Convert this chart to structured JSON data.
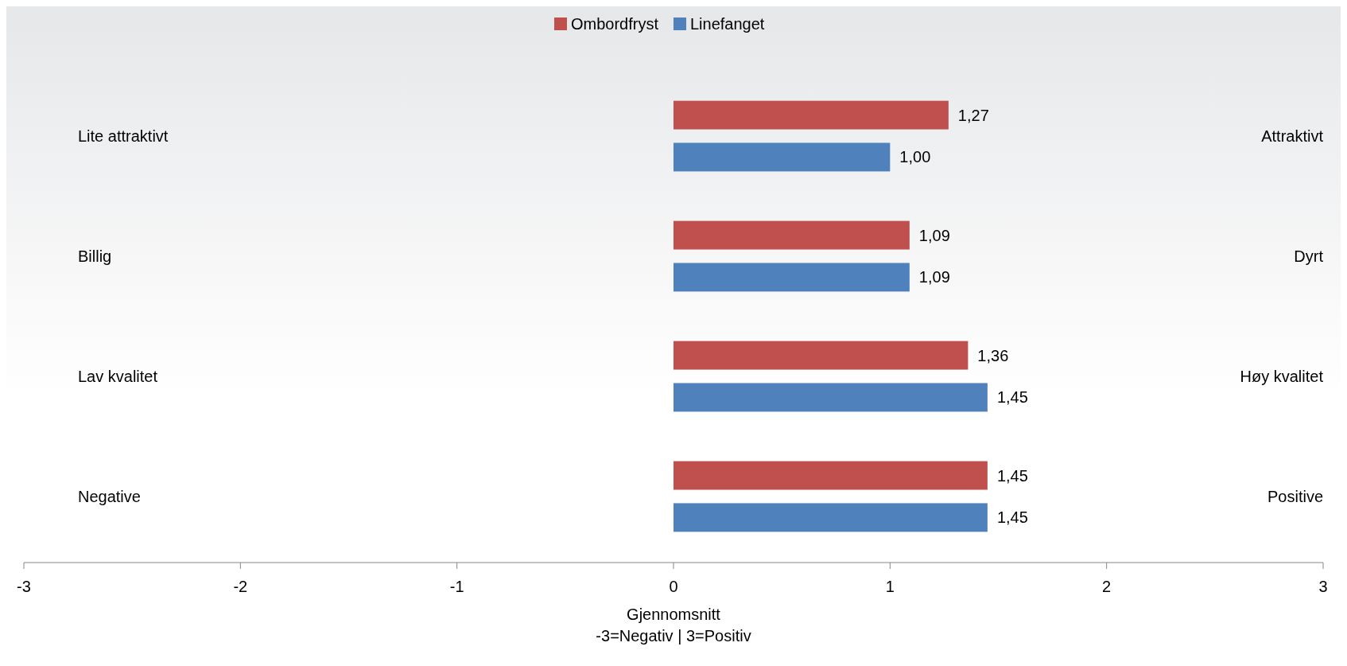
{
  "chart_data": {
    "type": "bar",
    "orientation": "horizontal",
    "categories": [
      "Lite attraktivt",
      "Billig",
      "Lav kvalitet",
      "Negative"
    ],
    "y2_categories": [
      "Attraktivt",
      "Dyrt",
      "Høy kvalitet",
      "Positive"
    ],
    "series": [
      {
        "name": "Ombordfryst",
        "color": "#c0504d",
        "values": [
          1.27,
          1.09,
          1.36,
          1.45
        ],
        "value_labels": [
          "1,27",
          "1,09",
          "1,36",
          "1,45"
        ]
      },
      {
        "name": "Linefanget",
        "color": "#4f81bd",
        "values": [
          1.0,
          1.09,
          1.45,
          1.45
        ],
        "value_labels": [
          "1,00",
          "1,09",
          "1,45",
          "1,45"
        ]
      }
    ],
    "xlim": [
      -3,
      3
    ],
    "xticks": [
      -3,
      -2,
      -1,
      0,
      1,
      2,
      3
    ],
    "xlabel": "Gjennomsnitt\n-3=Negativ | 3=Positiv",
    "legend": "top",
    "grid": false
  }
}
